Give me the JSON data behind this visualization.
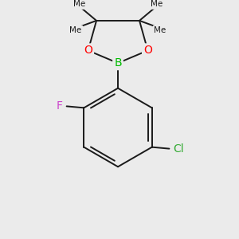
{
  "bg_color": "#ebebeb",
  "bond_color": "#1a1a1a",
  "bond_width": 1.4,
  "atom_colors": {
    "B": "#00bb00",
    "O": "#ff0000",
    "F": "#cc44cc",
    "Cl": "#33aa33",
    "C": "#1a1a1a"
  },
  "atom_fontsizes": {
    "B": 10,
    "O": 10,
    "F": 10,
    "Cl": 10,
    "me_label": 7.5
  }
}
